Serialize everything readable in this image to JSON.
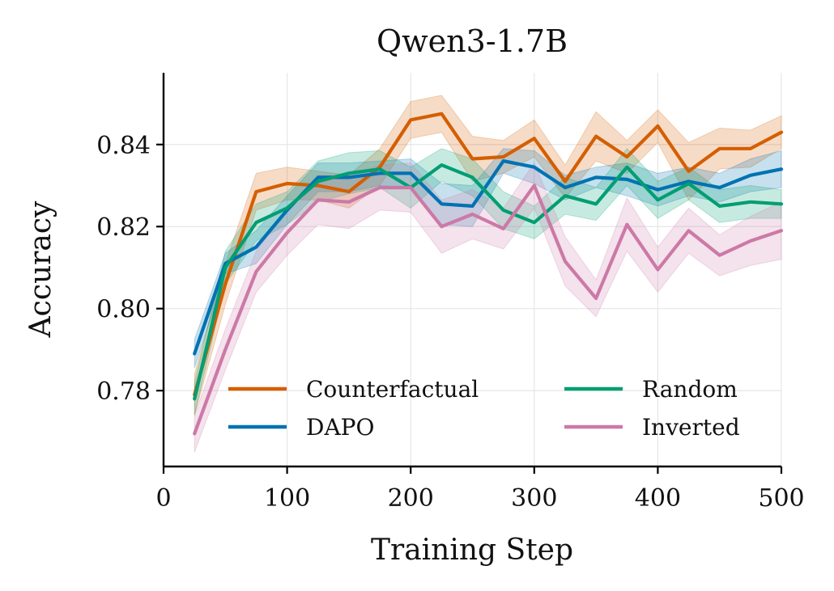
{
  "chart_data": {
    "type": "line",
    "title": "Qwen3-1.7B",
    "xlabel": "Training Step",
    "ylabel": "Accuracy",
    "xlim": [
      0,
      500
    ],
    "ylim": [
      0.7615,
      0.8575
    ],
    "xticks": [
      0,
      100,
      200,
      300,
      400,
      500
    ],
    "xtick_labels": [
      "0",
      "100",
      "200",
      "300",
      "400",
      "500"
    ],
    "yticks": [
      0.78,
      0.8,
      0.82,
      0.84
    ],
    "ytick_labels": [
      "0.78",
      "0.80",
      "0.82",
      "0.84"
    ],
    "grid": true,
    "legend": "lower-center, 2 columns",
    "x": [
      25,
      50,
      75,
      100,
      125,
      150,
      175,
      200,
      225,
      250,
      275,
      300,
      325,
      350,
      375,
      400,
      425,
      450,
      475,
      500
    ],
    "series": [
      {
        "name": "Counterfactual",
        "color": "#d55e00",
        "values": [
          0.779,
          0.806,
          0.8285,
          0.8305,
          0.83,
          0.8285,
          0.8345,
          0.846,
          0.8475,
          0.8365,
          0.837,
          0.8415,
          0.831,
          0.842,
          0.837,
          0.8445,
          0.8335,
          0.839,
          0.839,
          0.843
        ],
        "band": [
          0.005,
          0.005,
          0.0045,
          0.004,
          0.0035,
          0.004,
          0.0045,
          0.0045,
          0.0045,
          0.0055,
          0.004,
          0.0045,
          0.004,
          0.006,
          0.004,
          0.004,
          0.007,
          0.005,
          0.0045,
          0.004
        ]
      },
      {
        "name": "DAPO",
        "color": "#0072b2",
        "values": [
          0.789,
          0.811,
          0.815,
          0.824,
          0.832,
          0.832,
          0.833,
          0.833,
          0.8255,
          0.825,
          0.836,
          0.8345,
          0.8295,
          0.832,
          0.8315,
          0.829,
          0.831,
          0.8295,
          0.8325,
          0.834
        ],
        "band": [
          0.0035,
          0.0025,
          0.004,
          0.0035,
          0.0035,
          0.0035,
          0.003,
          0.0035,
          0.005,
          0.005,
          0.003,
          0.004,
          0.003,
          0.0025,
          0.004,
          0.004,
          0.0035,
          0.0035,
          0.004,
          0.0045
        ]
      },
      {
        "name": "Random",
        "color": "#009e73",
        "values": [
          0.778,
          0.81,
          0.821,
          0.8245,
          0.831,
          0.833,
          0.834,
          0.8295,
          0.835,
          0.832,
          0.824,
          0.821,
          0.8275,
          0.8255,
          0.8345,
          0.8265,
          0.8305,
          0.825,
          0.826,
          0.8255
        ],
        "band": [
          0.004,
          0.004,
          0.0045,
          0.004,
          0.005,
          0.005,
          0.0045,
          0.005,
          0.004,
          0.0045,
          0.0045,
          0.004,
          0.0045,
          0.004,
          0.0045,
          0.0045,
          0.004,
          0.004,
          0.004,
          0.0035
        ]
      },
      {
        "name": "Inverted",
        "color": "#cc79a7",
        "values": [
          0.7695,
          0.79,
          0.809,
          0.8185,
          0.8265,
          0.826,
          0.8295,
          0.8295,
          0.82,
          0.823,
          0.8195,
          0.83,
          0.8115,
          0.8025,
          0.8205,
          0.8095,
          0.819,
          0.813,
          0.8165,
          0.819
        ],
        "band": [
          0.0045,
          0.005,
          0.005,
          0.0055,
          0.006,
          0.0065,
          0.0055,
          0.006,
          0.0065,
          0.006,
          0.005,
          0.0055,
          0.006,
          0.0045,
          0.0065,
          0.0055,
          0.0055,
          0.005,
          0.006,
          0.007
        ]
      }
    ]
  }
}
